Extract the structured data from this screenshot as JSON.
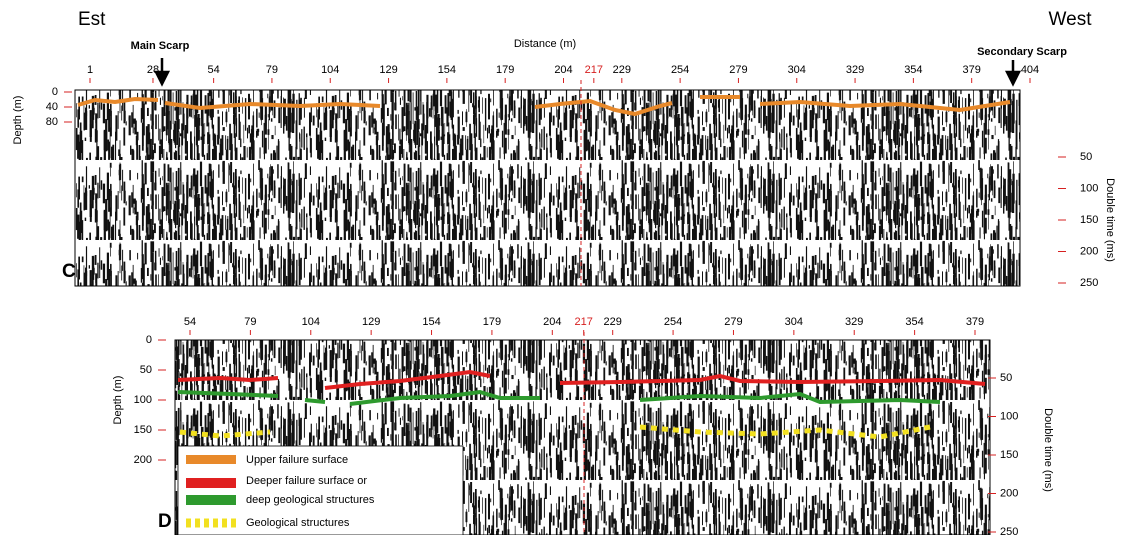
{
  "panel_c": {
    "label": "C",
    "left_title": "Est",
    "right_title": "West",
    "x_label": "Distance (m)",
    "main_scarp": "Main Scarp",
    "secondary_scarp": "Secondary Scarp",
    "x_ticks": [
      "1",
      "28",
      "54",
      "79",
      "104",
      "129",
      "154",
      "179",
      "204",
      "217",
      "229",
      "254",
      "279",
      "304",
      "329",
      "354",
      "379",
      "404"
    ],
    "y_label": "Depth (m)",
    "y_ticks": [
      "0",
      "40",
      "80"
    ],
    "y2_label": "Double time (ms)",
    "y2_ticks": [
      "50",
      "100",
      "150",
      "200",
      "250"
    ]
  },
  "panel_d": {
    "label": "D",
    "x_ticks": [
      "54",
      "79",
      "104",
      "129",
      "154",
      "179",
      "204",
      "217",
      "229",
      "254",
      "279",
      "304",
      "329",
      "354",
      "379"
    ],
    "y_label": "Depth (m)",
    "y_ticks": [
      "0",
      "50",
      "100",
      "150",
      "200"
    ],
    "y2_label": "Double time (ms)",
    "y2_ticks": [
      "50",
      "100",
      "150",
      "200",
      "250"
    ]
  },
  "legend": [
    "Upper failure surface",
    "Deeper failure surface or",
    "deep geological structures",
    "Geological structures"
  ]
}
